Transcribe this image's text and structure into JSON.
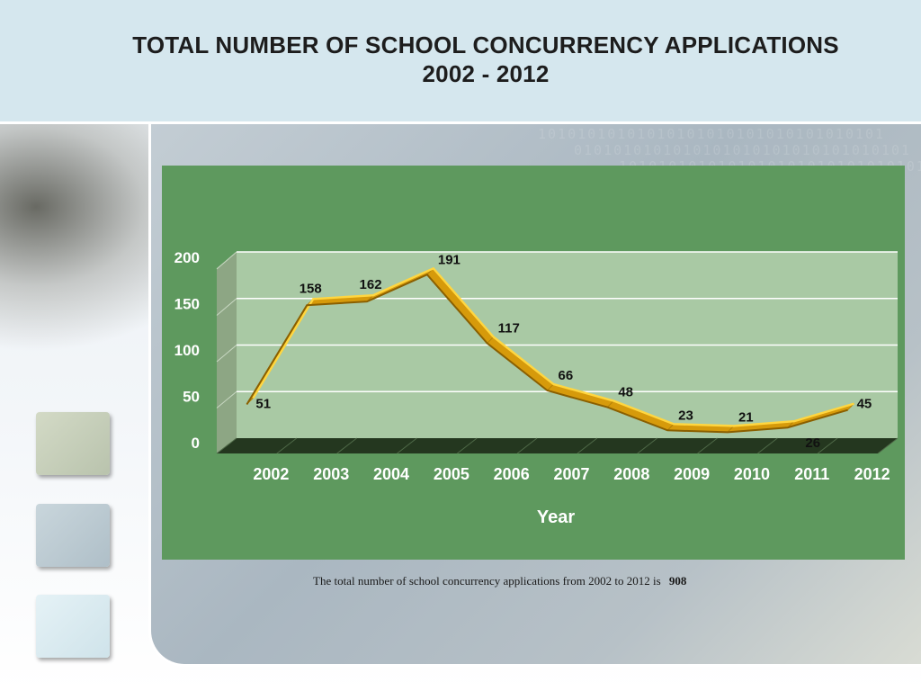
{
  "slide": {
    "title_line1": "TOTAL NUMBER OF SCHOOL CONCURRENCY APPLICATIONS",
    "title_line2": "2002 - 2012",
    "footnote_text": "The total number of school concurrency applications from 2002 to 2012 is",
    "footnote_total": "908"
  },
  "colors": {
    "chart_background": "#5e995e",
    "plot_wall": "#a9c9a4",
    "line": "#f2b707",
    "header_band": "#d5e7ee"
  },
  "chart_data": {
    "type": "line",
    "categories": [
      "2002",
      "2003",
      "2004",
      "2005",
      "2006",
      "2007",
      "2008",
      "2009",
      "2010",
      "2011",
      "2012"
    ],
    "series": [
      {
        "values": [
          51,
          158,
          162,
          191,
          117,
          66,
          48,
          23,
          21,
          26,
          45
        ]
      }
    ],
    "xlabel": "Year",
    "ylabel": "",
    "ylim": [
      0,
      200
    ],
    "yticks": [
      0,
      50,
      100,
      150,
      200
    ],
    "grid": true,
    "style": "3d"
  }
}
